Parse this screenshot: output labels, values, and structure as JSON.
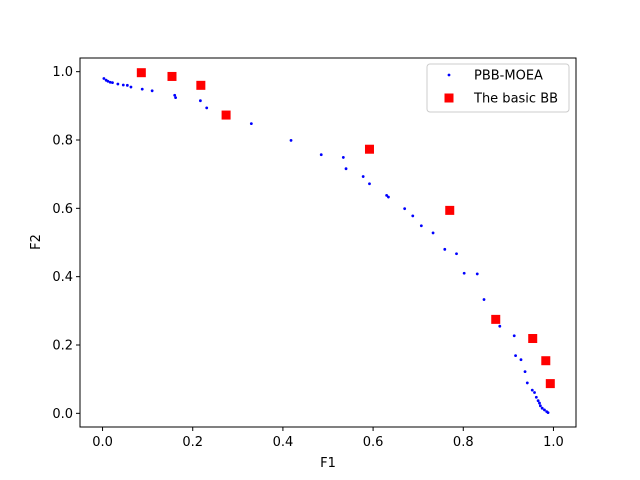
{
  "chart_data": {
    "type": "scatter",
    "xlabel": "F1",
    "ylabel": "F2",
    "xlim": [
      -0.05,
      1.05
    ],
    "ylim": [
      -0.04,
      1.04
    ],
    "xticks": [
      "0.0",
      "0.2",
      "0.4",
      "0.6",
      "0.8",
      "1.0"
    ],
    "yticks": [
      "0.0",
      "0.2",
      "0.4",
      "0.6",
      "0.8",
      "1.0"
    ],
    "grid": false,
    "legend_position": "top-right",
    "series": [
      {
        "name": "PBB-MOEA",
        "marker": "point",
        "color": "#0000ff",
        "points": [
          [
            0.003,
            0.98
          ],
          [
            0.008,
            0.975
          ],
          [
            0.012,
            0.972
          ],
          [
            0.017,
            0.969
          ],
          [
            0.022,
            0.968
          ],
          [
            0.034,
            0.964
          ],
          [
            0.046,
            0.961
          ],
          [
            0.055,
            0.96
          ],
          [
            0.063,
            0.955
          ],
          [
            0.088,
            0.949
          ],
          [
            0.11,
            0.944
          ],
          [
            0.16,
            0.931
          ],
          [
            0.162,
            0.924
          ],
          [
            0.217,
            0.915
          ],
          [
            0.231,
            0.894
          ],
          [
            0.33,
            0.848
          ],
          [
            0.418,
            0.799
          ],
          [
            0.485,
            0.757
          ],
          [
            0.534,
            0.749
          ],
          [
            0.54,
            0.716
          ],
          [
            0.578,
            0.693
          ],
          [
            0.592,
            0.672
          ],
          [
            0.63,
            0.638
          ],
          [
            0.634,
            0.633
          ],
          [
            0.67,
            0.599
          ],
          [
            0.688,
            0.578
          ],
          [
            0.707,
            0.549
          ],
          [
            0.733,
            0.528
          ],
          [
            0.759,
            0.48
          ],
          [
            0.785,
            0.467
          ],
          [
            0.802,
            0.41
          ],
          [
            0.831,
            0.408
          ],
          [
            0.846,
            0.333
          ],
          [
            0.881,
            0.255
          ],
          [
            0.913,
            0.227
          ],
          [
            0.916,
            0.169
          ],
          [
            0.928,
            0.157
          ],
          [
            0.937,
            0.122
          ],
          [
            0.942,
            0.089
          ],
          [
            0.953,
            0.068
          ],
          [
            0.958,
            0.061
          ],
          [
            0.962,
            0.047
          ],
          [
            0.966,
            0.037
          ],
          [
            0.969,
            0.03
          ],
          [
            0.971,
            0.022
          ],
          [
            0.975,
            0.015
          ],
          [
            0.98,
            0.01
          ],
          [
            0.985,
            0.005
          ],
          [
            0.988,
            0.002
          ]
        ]
      },
      {
        "name": "The basic BB",
        "marker": "square",
        "color": "#ff0000",
        "points": [
          [
            0.086,
            0.997
          ],
          [
            0.154,
            0.986
          ],
          [
            0.218,
            0.96
          ],
          [
            0.274,
            0.873
          ],
          [
            0.592,
            0.773
          ],
          [
            0.77,
            0.594
          ],
          [
            0.872,
            0.275
          ],
          [
            0.954,
            0.219
          ],
          [
            0.983,
            0.154
          ],
          [
            0.993,
            0.087
          ]
        ]
      }
    ]
  }
}
